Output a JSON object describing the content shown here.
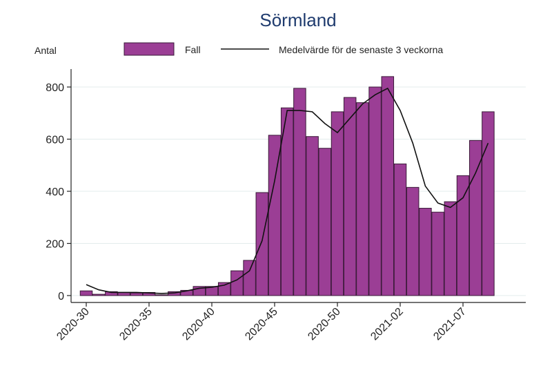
{
  "chart_data": {
    "type": "bar",
    "title": "Sörmland",
    "ylabel": "Antal",
    "legend": {
      "bar_label": "Fall",
      "line_label": "Medelvärde för de senaste 3 veckorna",
      "position": "top"
    },
    "ylim": [
      0,
      880
    ],
    "yticks": [
      0,
      200,
      400,
      600,
      800
    ],
    "xticks": [
      "2020-30",
      "2020-35",
      "2020-40",
      "2020-45",
      "2020-50",
      "2021-02",
      "2021-07"
    ],
    "grid": true,
    "bar_color": "#9b3e95",
    "weeks": [
      "2020-30",
      "2020-31",
      "2020-32",
      "2020-33",
      "2020-34",
      "2020-35",
      "2020-36",
      "2020-37",
      "2020-38",
      "2020-39",
      "2020-40",
      "2020-41",
      "2020-42",
      "2020-43",
      "2020-44",
      "2020-45",
      "2020-46",
      "2020-47",
      "2020-48",
      "2020-49",
      "2020-50",
      "2020-51",
      "2020-52",
      "2020-53",
      "2021-01",
      "2021-02",
      "2021-03",
      "2021-04",
      "2021-05",
      "2021-06",
      "2021-07",
      "2021-08",
      "2021-09",
      "2021-10"
    ],
    "series": [
      {
        "name": "Fall",
        "kind": "bar",
        "values": [
          18,
          5,
          15,
          12,
          10,
          12,
          3,
          15,
          20,
          35,
          35,
          50,
          95,
          135,
          395,
          615,
          720,
          795,
          610,
          565,
          705,
          760,
          740,
          800,
          840,
          505,
          415,
          335,
          320,
          360,
          460,
          595,
          705,
          null
        ]
      },
      {
        "name": "Medelvärde för de senaste 3 veckorna",
        "kind": "line",
        "values": [
          42,
          22,
          12,
          12,
          12,
          10,
          8,
          10,
          18,
          28,
          32,
          40,
          60,
          95,
          210,
          440,
          710,
          710,
          705,
          660,
          625,
          680,
          735,
          770,
          795,
          710,
          585,
          420,
          355,
          338,
          375,
          470,
          585,
          null
        ]
      }
    ]
  }
}
